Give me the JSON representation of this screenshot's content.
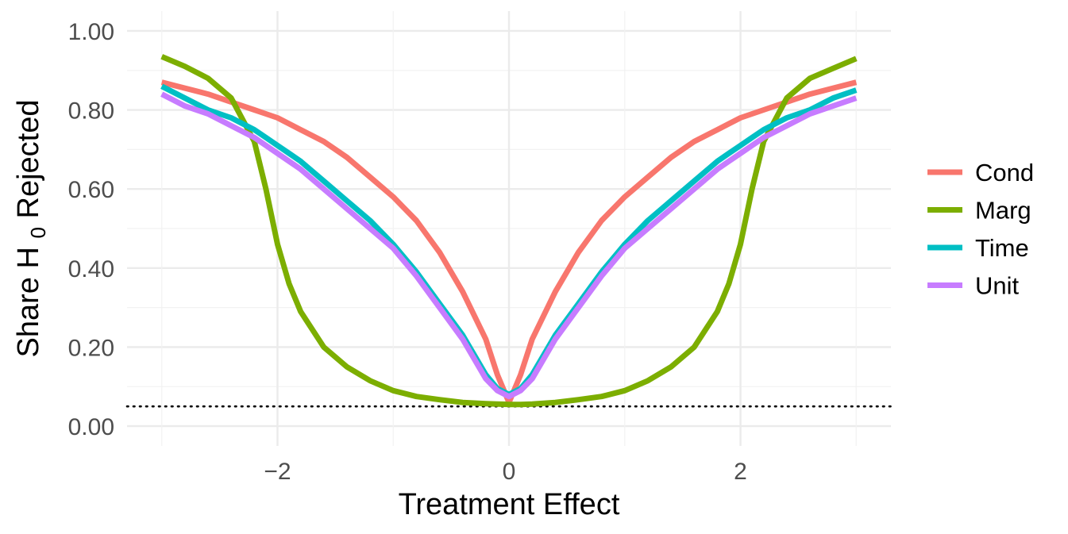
{
  "chart_data": {
    "type": "line",
    "title": "",
    "xlabel": "Treatment Effect",
    "ylabel_parts": [
      "Share  H",
      "0",
      "  Rejected"
    ],
    "xlim": [
      -3.3,
      3.3
    ],
    "ylim": [
      -0.05,
      1.05
    ],
    "x_ticks": [
      -2,
      0,
      2
    ],
    "x_tick_labels": [
      "−2",
      "0",
      "2"
    ],
    "y_ticks": [
      0,
      0.2,
      0.4,
      0.6,
      0.8,
      1.0
    ],
    "y_tick_labels": [
      "0.00",
      "0.20",
      "0.40",
      "0.60",
      "0.80",
      "1.00"
    ],
    "grid": true,
    "legend_position": "right",
    "reference_line": {
      "y": 0.05,
      "style": "dotted"
    },
    "x": [
      -3.0,
      -2.8,
      -2.6,
      -2.4,
      -2.2,
      -2.1,
      -2.0,
      -1.9,
      -1.8,
      -1.6,
      -1.4,
      -1.2,
      -1.0,
      -0.8,
      -0.6,
      -0.4,
      -0.2,
      -0.1,
      0.0,
      0.1,
      0.2,
      0.4,
      0.6,
      0.8,
      1.0,
      1.2,
      1.4,
      1.6,
      1.8,
      1.9,
      2.0,
      2.1,
      2.2,
      2.4,
      2.6,
      2.8,
      3.0
    ],
    "series": [
      {
        "name": "Cond",
        "color": "#F8766D",
        "values": [
          0.87,
          0.855,
          0.84,
          0.82,
          0.8,
          0.79,
          0.78,
          0.765,
          0.75,
          0.72,
          0.68,
          0.63,
          0.58,
          0.52,
          0.44,
          0.34,
          0.22,
          0.13,
          0.06,
          0.13,
          0.22,
          0.34,
          0.44,
          0.52,
          0.58,
          0.63,
          0.68,
          0.72,
          0.75,
          0.765,
          0.78,
          0.79,
          0.8,
          0.82,
          0.84,
          0.855,
          0.87
        ]
      },
      {
        "name": "Marg",
        "color": "#7CAE00",
        "values": [
          0.935,
          0.91,
          0.88,
          0.83,
          0.72,
          0.6,
          0.46,
          0.36,
          0.29,
          0.2,
          0.15,
          0.115,
          0.09,
          0.075,
          0.067,
          0.06,
          0.057,
          0.056,
          0.055,
          0.055,
          0.056,
          0.06,
          0.067,
          0.075,
          0.09,
          0.115,
          0.15,
          0.2,
          0.29,
          0.36,
          0.46,
          0.6,
          0.72,
          0.83,
          0.88,
          0.905,
          0.93
        ]
      },
      {
        "name": "Time",
        "color": "#00BFC4",
        "values": [
          0.86,
          0.83,
          0.8,
          0.78,
          0.75,
          0.73,
          0.71,
          0.69,
          0.67,
          0.62,
          0.57,
          0.52,
          0.46,
          0.39,
          0.31,
          0.23,
          0.13,
          0.095,
          0.08,
          0.095,
          0.13,
          0.23,
          0.31,
          0.39,
          0.46,
          0.52,
          0.57,
          0.62,
          0.67,
          0.69,
          0.71,
          0.73,
          0.75,
          0.78,
          0.8,
          0.83,
          0.85
        ]
      },
      {
        "name": "Unit",
        "color": "#C77CFF",
        "values": [
          0.84,
          0.81,
          0.79,
          0.76,
          0.73,
          0.71,
          0.69,
          0.67,
          0.65,
          0.6,
          0.55,
          0.5,
          0.45,
          0.38,
          0.3,
          0.22,
          0.12,
          0.09,
          0.075,
          0.09,
          0.12,
          0.22,
          0.3,
          0.38,
          0.45,
          0.5,
          0.55,
          0.6,
          0.65,
          0.67,
          0.69,
          0.71,
          0.73,
          0.76,
          0.79,
          0.81,
          0.83
        ]
      }
    ]
  }
}
